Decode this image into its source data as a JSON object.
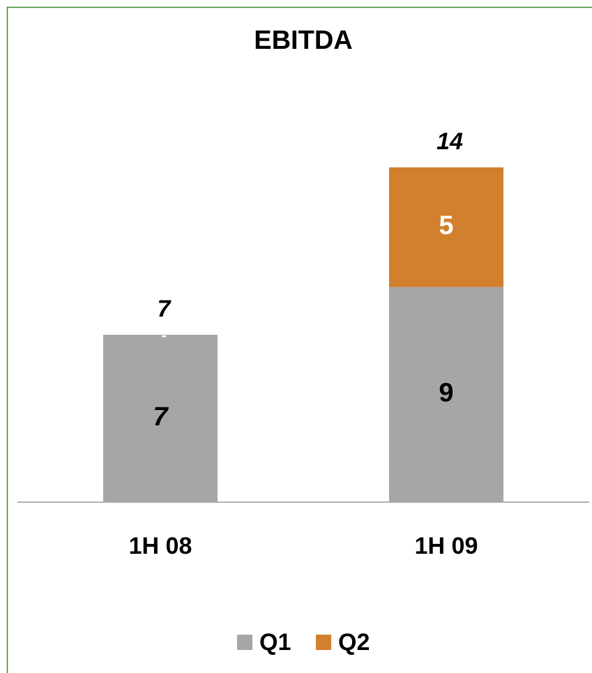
{
  "chart_data": {
    "type": "stacked_bar",
    "title": "EBITDA",
    "categories": [
      "1H 08",
      "1H 09"
    ],
    "series": [
      {
        "name": "Q1",
        "color": "#a6a6a6",
        "values": [
          7,
          9
        ],
        "label_color": "#000000"
      },
      {
        "name": "Q2",
        "color": "#d27f2e",
        "values": [
          0,
          5
        ],
        "value_labels": [
          "-",
          "5"
        ],
        "label_color": "#ffffff"
      }
    ],
    "totals": [
      7,
      14
    ],
    "legend": "bottom"
  }
}
